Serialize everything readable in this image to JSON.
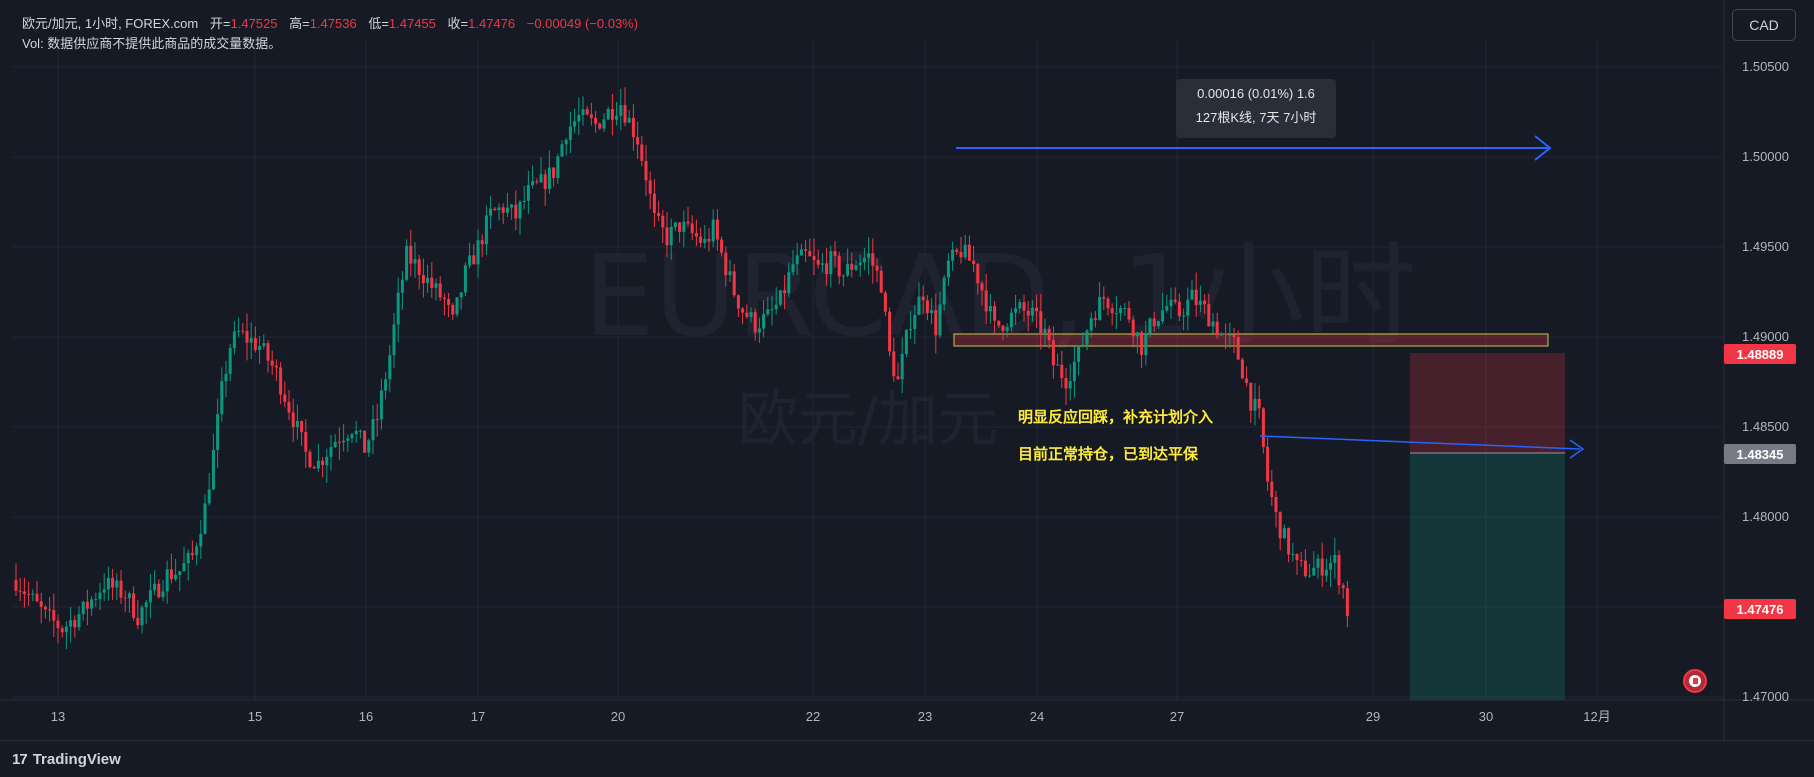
{
  "header": {
    "symbol_line": "欧元/加元, 1小时, FOREX.com",
    "open_label": "开=",
    "open": "1.47525",
    "high_label": "高=",
    "high": "1.47536",
    "low_label": "低=",
    "low": "1.47455",
    "close_label": "收=",
    "close": "1.47476",
    "change": "−0.00049 (−0.03%)",
    "vol_line": "Vol: 数据供应商不提供此商品的成交量数据。"
  },
  "currency_button": "CAD",
  "watermark": {
    "symbol": "EURCAD, 1小时",
    "name": "欧元/加元"
  },
  "measure_box": {
    "line1": "0.00016 (0.01%) 1.6",
    "line2": "127根K线, 7天 7小时"
  },
  "annotations": {
    "line1": "明显反应回踩，补充计划介入",
    "line2": "目前正常持仓，已到达平保"
  },
  "footer": {
    "brand": "TradingView"
  },
  "price_tags": [
    {
      "label": "1.48889",
      "color": "#f23645"
    },
    {
      "label": "1.48345",
      "color": "#787b86"
    },
    {
      "label": "1.47476",
      "color": "#f23645"
    }
  ],
  "colors": {
    "up": "#089981",
    "down": "#f23645",
    "background": "#161a25",
    "grid": "#232733",
    "arrow": "#2962ff",
    "note": "#ffeb3b"
  },
  "chart_data": {
    "type": "candlestick",
    "title": "",
    "xlabel": "",
    "ylabel": "",
    "ylim": [
      1.47,
      1.505
    ],
    "y_ticks": [
      "1.50500",
      "1.50000",
      "1.49500",
      "1.49000",
      "1.48500",
      "1.48000",
      "1.47500",
      "1.47000"
    ],
    "x_ticks": [
      "13",
      "15",
      "16",
      "17",
      "20",
      "22",
      "23",
      "24",
      "27",
      "29",
      "30",
      "12月"
    ],
    "price_path": [
      [
        0,
        1.4765
      ],
      [
        7,
        1.4745
      ],
      [
        11,
        1.4738
      ],
      [
        16,
        1.4748
      ],
      [
        21,
        1.4763
      ],
      [
        26,
        1.4757
      ],
      [
        29,
        1.4745
      ],
      [
        33,
        1.4758
      ],
      [
        36,
        1.4768
      ],
      [
        39,
        1.477
      ],
      [
        42,
        1.4778
      ],
      [
        45,
        1.4805
      ],
      [
        47,
        1.4835
      ],
      [
        49,
        1.487
      ],
      [
        51,
        1.4895
      ],
      [
        53,
        1.4902
      ],
      [
        58,
        1.4895
      ],
      [
        62,
        1.488
      ],
      [
        66,
        1.4855
      ],
      [
        69,
        1.4835
      ],
      [
        72,
        1.483
      ],
      [
        76,
        1.4843
      ],
      [
        80,
        1.485
      ],
      [
        83,
        1.4838
      ],
      [
        86,
        1.4855
      ],
      [
        89,
        1.489
      ],
      [
        91,
        1.492
      ],
      [
        93,
        1.4945
      ],
      [
        96,
        1.4938
      ],
      [
        99,
        1.4928
      ],
      [
        102,
        1.492
      ],
      [
        104,
        1.4908
      ],
      [
        107,
        1.4935
      ],
      [
        110,
        1.495
      ],
      [
        113,
        1.4968
      ],
      [
        116,
        1.4972
      ],
      [
        119,
        1.4967
      ],
      [
        122,
        1.498
      ],
      [
        125,
        1.4985
      ],
      [
        128,
        1.4992
      ],
      [
        131,
        1.5015
      ],
      [
        134,
        1.5022
      ],
      [
        138,
        1.5018
      ],
      [
        141,
        1.5025
      ],
      [
        144,
        1.503
      ],
      [
        146,
        1.502
      ],
      [
        148,
        1.501
      ],
      [
        150,
        1.499
      ],
      [
        152,
        1.4965
      ],
      [
        155,
        1.4955
      ],
      [
        158,
        1.4962
      ],
      [
        161,
        1.4957
      ],
      [
        164,
        1.4952
      ],
      [
        166,
        1.496
      ],
      [
        168,
        1.4946
      ],
      [
        171,
        1.4925
      ],
      [
        173,
        1.4915
      ],
      [
        176,
        1.4907
      ],
      [
        179,
        1.4911
      ],
      [
        182,
        1.492
      ],
      [
        185,
        1.494
      ],
      [
        188,
        1.4945
      ],
      [
        191,
        1.4938
      ],
      [
        194,
        1.4942
      ],
      [
        197,
        1.4935
      ],
      [
        200,
        1.4942
      ],
      [
        203,
        1.4945
      ],
      [
        206,
        1.493
      ],
      [
        208,
        1.489
      ],
      [
        210,
        1.4875
      ],
      [
        213,
        1.491
      ],
      [
        216,
        1.4925
      ],
      [
        219,
        1.4905
      ],
      [
        222,
        1.494
      ],
      [
        225,
        1.4948
      ],
      [
        228,
        1.494
      ],
      [
        231,
        1.492
      ],
      [
        233,
        1.4905
      ],
      [
        236,
        1.491
      ],
      [
        239,
        1.4915
      ],
      [
        242,
        1.4912
      ],
      [
        245,
        1.4902
      ],
      [
        247,
        1.4885
      ],
      [
        250,
        1.4877
      ],
      [
        253,
        1.489
      ],
      [
        256,
        1.4912
      ],
      [
        259,
        1.4922
      ],
      [
        262,
        1.4917
      ],
      [
        265,
        1.4912
      ],
      [
        268,
        1.4895
      ],
      [
        271,
        1.491
      ],
      [
        274,
        1.4917
      ],
      [
        277,
        1.4913
      ],
      [
        280,
        1.4922
      ],
      [
        283,
        1.4915
      ],
      [
        286,
        1.4905
      ],
      [
        288,
        1.4898
      ],
      [
        290,
        1.4896
      ],
      [
        292,
        1.4882
      ],
      [
        294,
        1.4865
      ],
      [
        296,
        1.4855
      ],
      [
        298,
        1.482
      ],
      [
        300,
        1.48
      ],
      [
        302,
        1.4788
      ],
      [
        305,
        1.4772
      ],
      [
        308,
        1.477
      ],
      [
        311,
        1.4773
      ],
      [
        314,
        1.4775
      ],
      [
        316,
        1.476
      ],
      [
        317,
        1.4748
      ]
    ],
    "measure_span": {
      "bars": 127,
      "duration": "7天 7小时"
    },
    "levels": [
      1.48889,
      1.48345,
      1.47476
    ]
  }
}
